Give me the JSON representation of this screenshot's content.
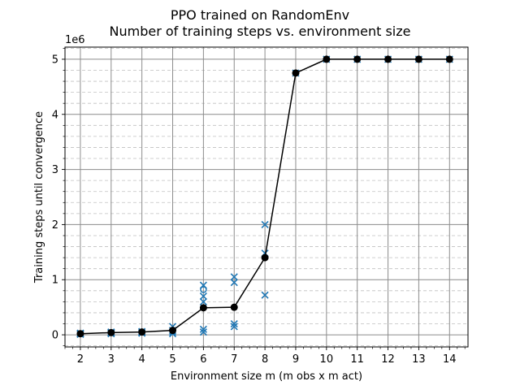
{
  "chart_data": {
    "type": "scatter",
    "title": "PPO trained on RandomEnv",
    "subtitle": "Number of training steps vs. environment size",
    "xlabel": "Environment size m (m obs x m act)",
    "ylabel": "Training steps until convergence",
    "y_offset_label": "1e6",
    "xlim": [
      1.5,
      14.6
    ],
    "ylim": [
      -0.22,
      5.22
    ],
    "x_ticks": [
      2,
      3,
      4,
      5,
      6,
      7,
      8,
      9,
      10,
      11,
      12,
      13,
      14
    ],
    "x_tick_labels": [
      "2",
      "3",
      "4",
      "5",
      "6",
      "7",
      "8",
      "9",
      "10",
      "11",
      "12",
      "13",
      "14"
    ],
    "y_ticks": [
      0,
      1,
      2,
      3,
      4,
      5
    ],
    "y_tick_labels": [
      "0",
      "1",
      "2",
      "3",
      "4",
      "5"
    ],
    "y_minor_step": 0.2,
    "x_minor_step": 0.25,
    "grid": "major solid, minor dashed",
    "legend": "none",
    "series": [
      {
        "marker": "x",
        "color": "#1f77b4",
        "points": [
          [
            2,
            0.02
          ],
          [
            2,
            0.03
          ],
          [
            2,
            0.01
          ],
          [
            2,
            0.02
          ],
          [
            3,
            0.03
          ],
          [
            3,
            0.05
          ],
          [
            3,
            0.02
          ],
          [
            3,
            0.04
          ],
          [
            4,
            0.04
          ],
          [
            4,
            0.06
          ],
          [
            4,
            0.03
          ],
          [
            5,
            0.02
          ],
          [
            5,
            0.05
          ],
          [
            5,
            0.08
          ],
          [
            5,
            0.15
          ],
          [
            6,
            0.05
          ],
          [
            6,
            0.1
          ],
          [
            6,
            0.6
          ],
          [
            6,
            0.7
          ],
          [
            6,
            0.9
          ],
          [
            7,
            0.15
          ],
          [
            7,
            0.2
          ],
          [
            7,
            0.95
          ],
          [
            7,
            1.05
          ],
          [
            8,
            0.72
          ],
          [
            8,
            1.48
          ],
          [
            8,
            2.0
          ],
          [
            9,
            4.75
          ],
          [
            10,
            5.0
          ],
          [
            11,
            5.0
          ],
          [
            12,
            5.0
          ],
          [
            13,
            5.0
          ],
          [
            14,
            5.0
          ]
        ]
      },
      {
        "marker": "o-open",
        "color": "#1f77b4",
        "points": [
          [
            6,
            0.82
          ]
        ]
      },
      {
        "marker": "o-line",
        "color": "#000000",
        "x": [
          2,
          3,
          4,
          5,
          6,
          7,
          8,
          9,
          10,
          11,
          12,
          13,
          14
        ],
        "y": [
          0.02,
          0.04,
          0.05,
          0.08,
          0.49,
          0.5,
          1.4,
          4.75,
          5.0,
          5.0,
          5.0,
          5.0,
          5.0
        ]
      }
    ]
  }
}
